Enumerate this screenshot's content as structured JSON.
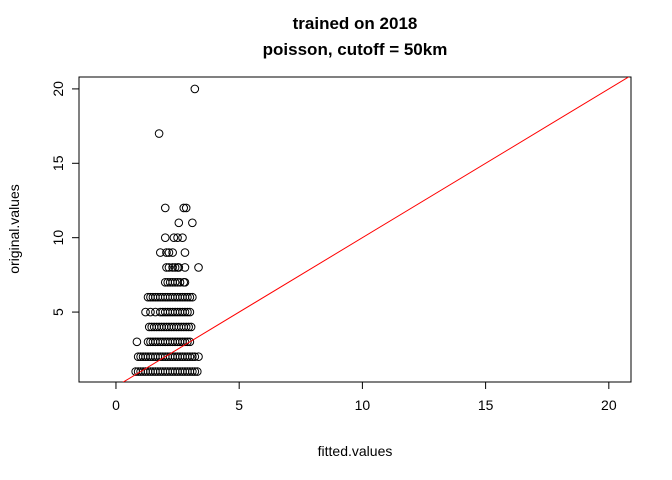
{
  "chart_data": {
    "type": "scatter",
    "title": "trained on 2018",
    "subtitle": "poisson, cutoff = 50km",
    "xlabel": "fitted.values",
    "ylabel": "original.values",
    "xlim": [
      -1.5,
      20.9
    ],
    "ylim": [
      0.3,
      20.8
    ],
    "xticks": [
      0,
      5,
      10,
      15,
      20
    ],
    "yticks": [
      5,
      10,
      15,
      20
    ],
    "reference_line": {
      "intercept": 0,
      "slope": 1,
      "color": "#ff0000"
    },
    "point_color": "#000000",
    "series": [
      {
        "x": [
          0.8,
          0.9,
          1.0,
          1.1,
          1.2,
          1.3,
          1.4,
          1.5,
          1.6,
          1.7,
          1.8,
          1.9,
          2.0,
          2.1,
          2.2,
          2.3,
          2.4,
          2.5,
          2.6,
          2.7,
          2.8,
          2.9,
          3.0,
          3.1,
          3.2,
          3.3,
          0.9,
          1.0,
          1.1,
          1.2,
          1.3,
          1.4,
          1.5,
          1.6,
          1.7,
          1.8,
          1.9,
          2.0,
          2.1,
          2.2,
          2.3,
          2.4,
          2.5,
          2.6,
          2.7,
          2.8,
          2.9,
          3.0,
          3.1,
          3.2,
          3.35,
          0.85,
          1.3,
          1.4,
          1.5,
          1.6,
          1.7,
          1.8,
          1.9,
          2.0,
          2.1,
          2.2,
          2.3,
          2.4,
          2.5,
          2.6,
          2.7,
          2.8,
          2.9,
          3.0,
          1.35,
          1.45,
          1.55,
          1.65,
          1.75,
          1.85,
          1.95,
          2.05,
          2.15,
          2.25,
          2.35,
          2.45,
          2.55,
          2.65,
          2.75,
          2.85,
          2.95,
          3.05,
          1.2,
          1.4,
          1.6,
          1.8,
          1.9,
          2.0,
          2.1,
          2.2,
          2.3,
          2.4,
          2.5,
          2.6,
          2.7,
          2.8,
          2.9,
          3.0,
          1.3,
          1.4,
          1.5,
          1.6,
          1.7,
          1.8,
          1.9,
          2.0,
          2.1,
          2.2,
          2.3,
          2.4,
          2.5,
          2.6,
          2.7,
          2.8,
          2.9,
          3.0,
          3.1,
          2.0,
          2.1,
          2.2,
          2.3,
          2.4,
          2.5,
          2.6,
          2.75,
          2.8,
          2.05,
          2.15,
          2.3,
          2.4,
          2.5,
          2.55,
          2.8,
          3.35,
          1.8,
          2.05,
          2.15,
          2.3,
          2.8,
          2.0,
          2.35,
          2.5,
          2.7,
          2.55,
          3.1,
          2.0,
          2.75,
          2.85,
          1.75,
          3.2
        ],
        "y": [
          1,
          1,
          1,
          1,
          1,
          1,
          1,
          1,
          1,
          1,
          1,
          1,
          1,
          1,
          1,
          1,
          1,
          1,
          1,
          1,
          1,
          1,
          1,
          1,
          1,
          1,
          2,
          2,
          2,
          2,
          2,
          2,
          2,
          2,
          2,
          2,
          2,
          2,
          2,
          2,
          2,
          2,
          2,
          2,
          2,
          2,
          2,
          2,
          2,
          2,
          2,
          3,
          3,
          3,
          3,
          3,
          3,
          3,
          3,
          3,
          3,
          3,
          3,
          3,
          3,
          3,
          3,
          3,
          3,
          3,
          4,
          4,
          4,
          4,
          4,
          4,
          4,
          4,
          4,
          4,
          4,
          4,
          4,
          4,
          4,
          4,
          4,
          4,
          5,
          5,
          5,
          5,
          5,
          5,
          5,
          5,
          5,
          5,
          5,
          5,
          5,
          5,
          5,
          5,
          6,
          6,
          6,
          6,
          6,
          6,
          6,
          6,
          6,
          6,
          6,
          6,
          6,
          6,
          6,
          6,
          6,
          6,
          6,
          7,
          7,
          7,
          7,
          7,
          7,
          7,
          7,
          7,
          8,
          8,
          8,
          8,
          8,
          8,
          8,
          8,
          9,
          9,
          9,
          9,
          9,
          10,
          10,
          10,
          10,
          11,
          11,
          12,
          12,
          12,
          17,
          20
        ]
      }
    ]
  }
}
